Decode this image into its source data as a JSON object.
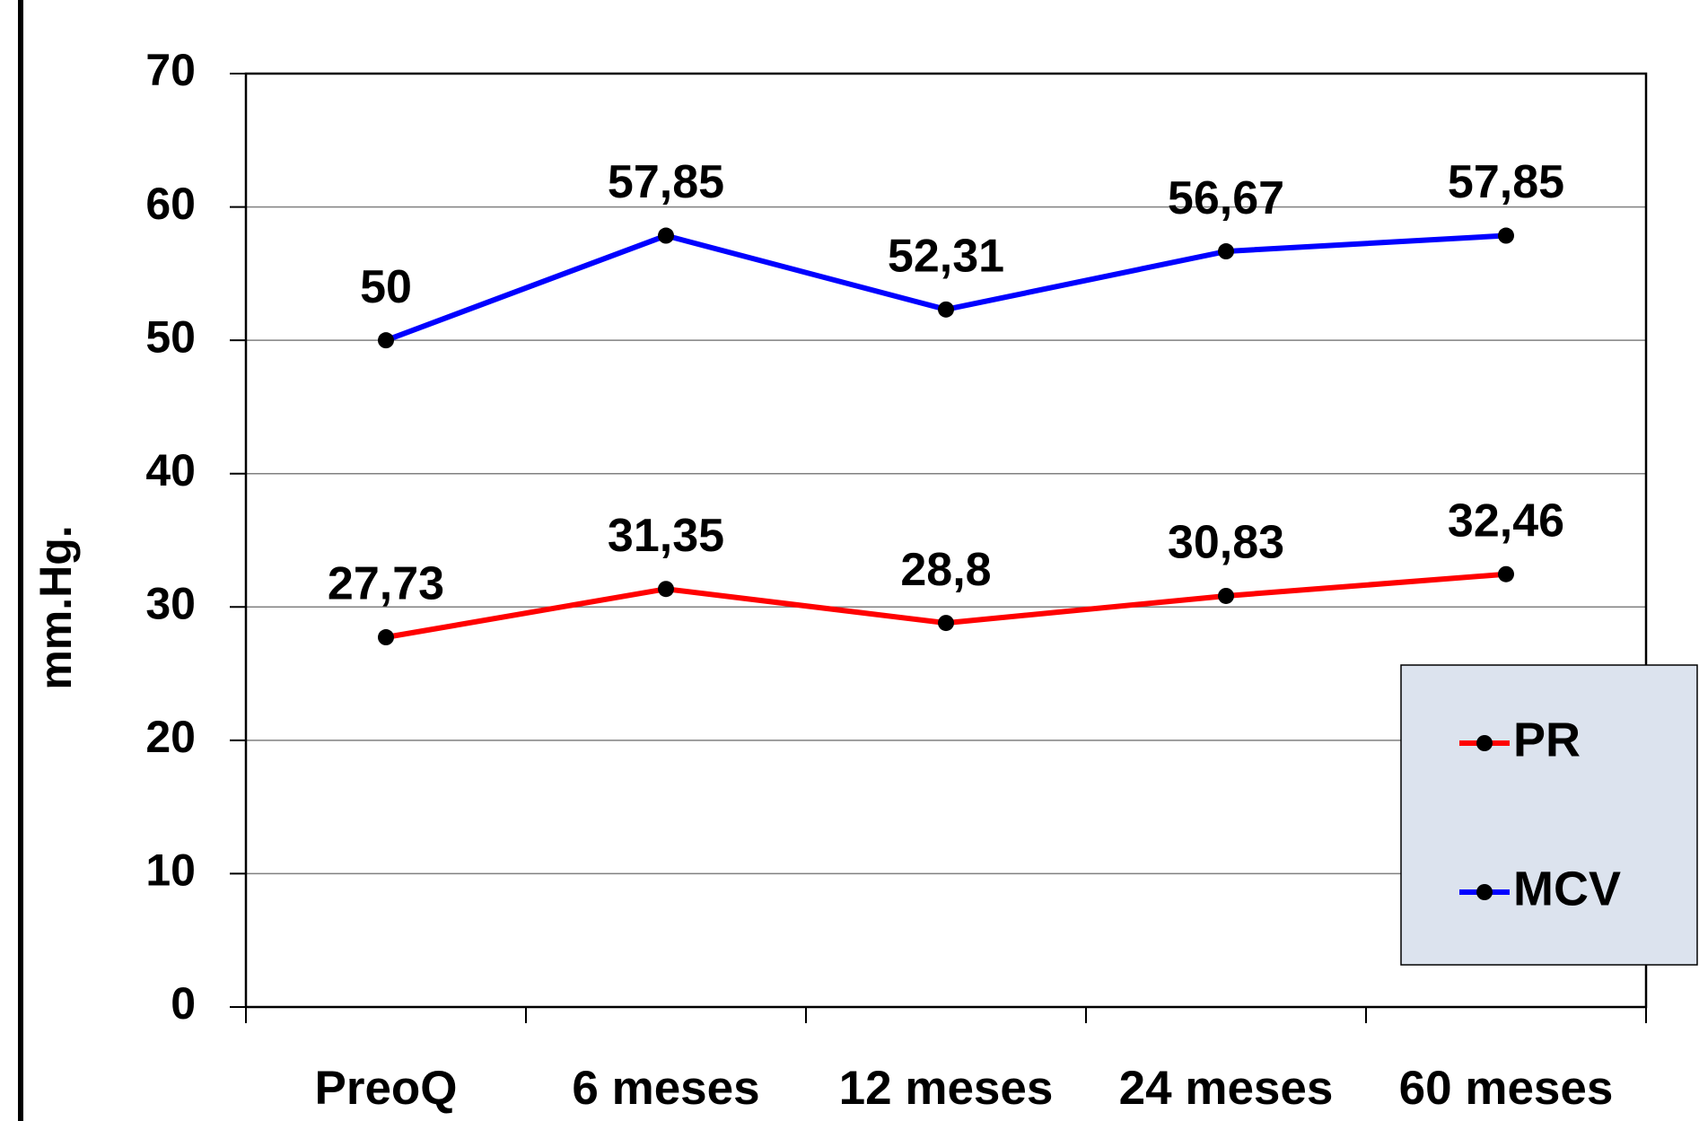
{
  "chart_data": {
    "type": "line",
    "y_label": "mm.Hg.",
    "categories": [
      "PreoQ",
      "6 meses",
      "12 meses",
      "24 meses",
      "60 meses"
    ],
    "series": [
      {
        "name": "PR",
        "color": "#ff0000",
        "values": [
          27.73,
          31.35,
          28.8,
          30.83,
          32.46
        ],
        "value_labels": [
          "27,73",
          "31,35",
          "28,8",
          "30,83",
          "32,46"
        ]
      },
      {
        "name": "MCV",
        "color": "#0000ff",
        "values": [
          50,
          57.85,
          52.31,
          56.67,
          57.85
        ],
        "value_labels": [
          "50",
          "57,85",
          "52,31",
          "56,67",
          "57,85"
        ]
      }
    ],
    "ylim": [
      0,
      70
    ],
    "yticks": [
      0,
      10,
      20,
      30,
      40,
      50,
      60,
      70
    ],
    "grid": true,
    "legend": "right"
  }
}
